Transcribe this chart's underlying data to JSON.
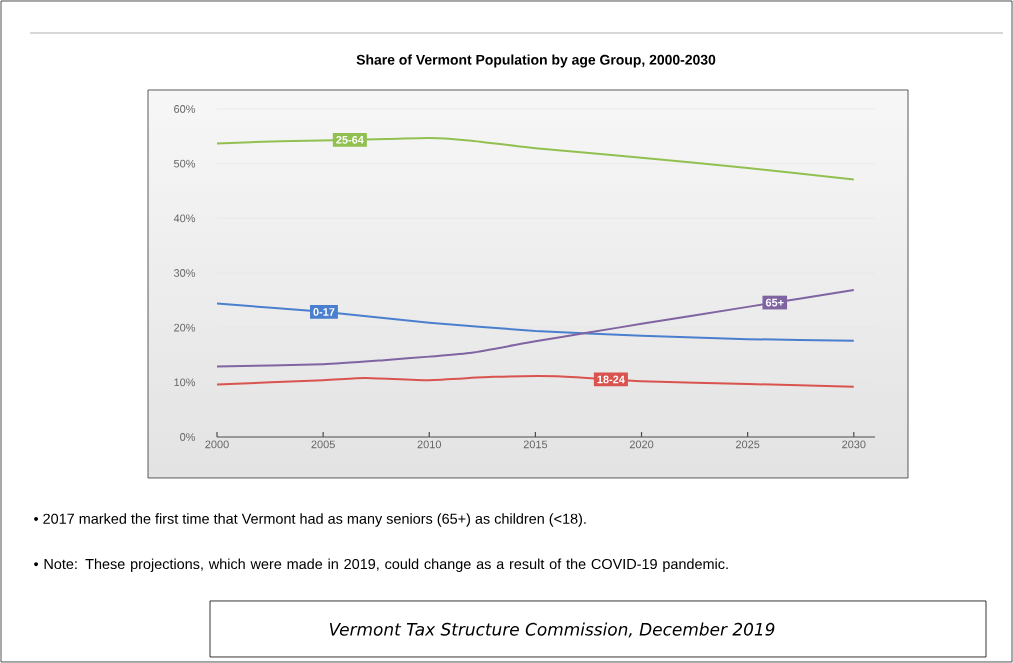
{
  "chart_data": {
    "type": "line",
    "title": "Share of Vermont Population by age Group, 2000-2030",
    "series": [
      {
        "name": "25-64",
        "color": "#92c050",
        "x": [
          2000,
          2003,
          2008,
          2010,
          2012,
          2015,
          2020,
          2025,
          2030
        ],
        "values": [
          53.7,
          54.1,
          54.5,
          54.7,
          54.2,
          52.8,
          51.1,
          49.2,
          47.1
        ]
      },
      {
        "name": "0-17",
        "color": "#4a7fcf",
        "x": [
          2000,
          2005,
          2010,
          2015,
          2020,
          2025,
          2030
        ],
        "values": [
          24.4,
          22.9,
          20.9,
          19.4,
          18.5,
          17.9,
          17.6
        ]
      },
      {
        "name": "65+",
        "color": "#8064a2",
        "x": [
          2000,
          2005,
          2008,
          2010,
          2012,
          2015,
          2017.5,
          2020,
          2025,
          2030
        ],
        "values": [
          12.9,
          13.3,
          14.1,
          14.7,
          15.4,
          17.5,
          19.1,
          20.7,
          23.8,
          26.9
        ]
      },
      {
        "name": "18-24",
        "color": "#d9534f",
        "x": [
          2000,
          2005,
          2007,
          2010,
          2013,
          2016,
          2020,
          2025,
          2030
        ],
        "values": [
          9.6,
          10.4,
          10.8,
          10.4,
          11.0,
          11.1,
          10.2,
          9.7,
          9.2
        ]
      }
    ],
    "xlim": [
      2000,
      2031
    ],
    "xticks": [
      2000,
      2005,
      2010,
      2015,
      2020,
      2025,
      2030
    ],
    "ylim": [
      0,
      60
    ],
    "yticks": [
      {
        "value": 0,
        "label": "0%"
      },
      {
        "value": 10,
        "label": "10%"
      },
      {
        "value": 20,
        "label": "20%"
      },
      {
        "value": 30,
        "label": "30%"
      },
      {
        "value": 40,
        "label": "40%"
      },
      {
        "value": 50,
        "label": "50%"
      },
      {
        "value": 60,
        "label": "60%"
      }
    ],
    "grid": "y",
    "legend": false,
    "marker": "none",
    "line_style": "solid",
    "annotations": [
      "• 2017 marked the first time that Vermont had as many seniors (65+) as children (<18).",
      "• Note: These projections, which were made in 2019, could change as a result of the COVID-19 pandemic.",
      "Vermont Tax Structure Commission, December 2019"
    ]
  }
}
